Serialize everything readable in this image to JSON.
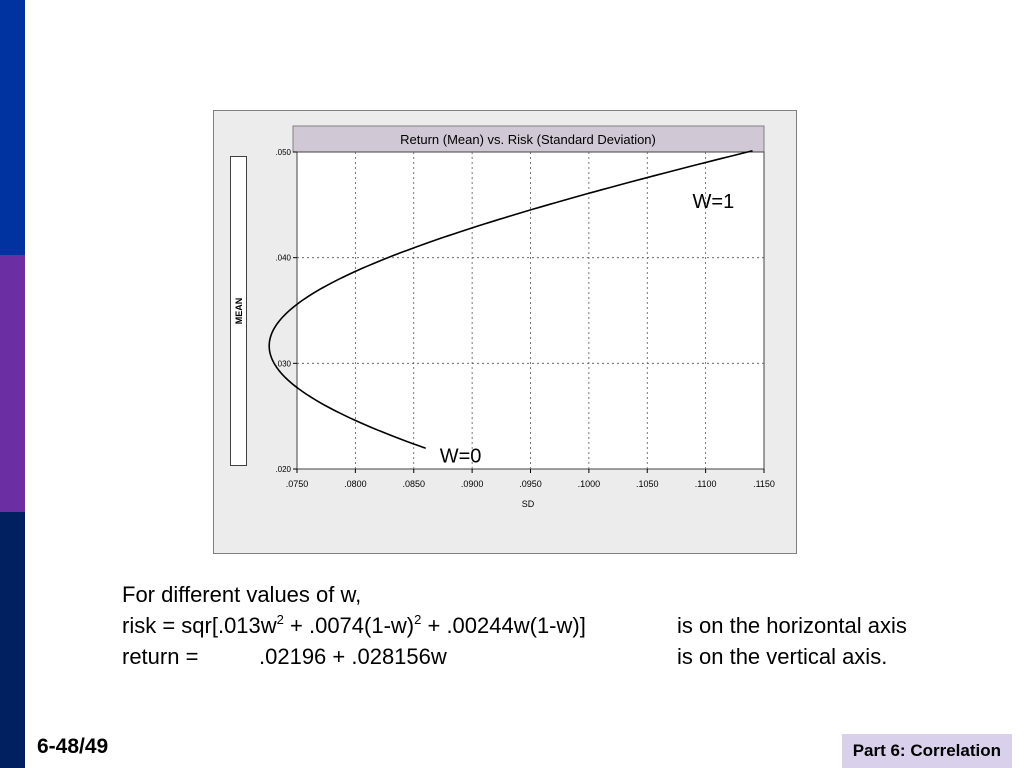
{
  "slide": {
    "number": "6-48/49",
    "section": "Part 6: Correlation"
  },
  "chart_data": {
    "type": "line",
    "title": "Return (Mean) vs. Risk (Standard Deviation)",
    "xlabel": "SD",
    "ylabel": "MEAN",
    "xlim": [
      0.075,
      0.115
    ],
    "ylim": [
      0.02,
      0.05
    ],
    "x_ticks": [
      ".0750",
      ".0800",
      ".0850",
      ".0900",
      ".0950",
      ".1000",
      ".1050",
      ".1100",
      ".1150"
    ],
    "y_ticks": [
      ".020",
      ".030",
      ".040",
      ".050"
    ],
    "grid": true,
    "curve": {
      "x_formula": "sqrt(.013w^2 + .0074(1-w)^2 + .00244w(1-w))",
      "y_formula": ".02196 + .028156w",
      "w_range": [
        0,
        1
      ]
    },
    "annotations": [
      {
        "text": "W=0",
        "w": 0
      },
      {
        "text": "W=1",
        "w": 1
      }
    ]
  },
  "caption": {
    "line1": "For different values of w,",
    "line2": {
      "risk_prefix": "risk = sqr[.013w",
      "sup1": "2",
      "mid": " + .0074(1-w)",
      "sup2": "2",
      "suffix": " + .00244w(1-w)]",
      "right": "is on the horizontal axis"
    },
    "line3": {
      "left": "return =",
      "formula": ".02196 + .028156w",
      "right": "is on the vertical axis."
    }
  }
}
